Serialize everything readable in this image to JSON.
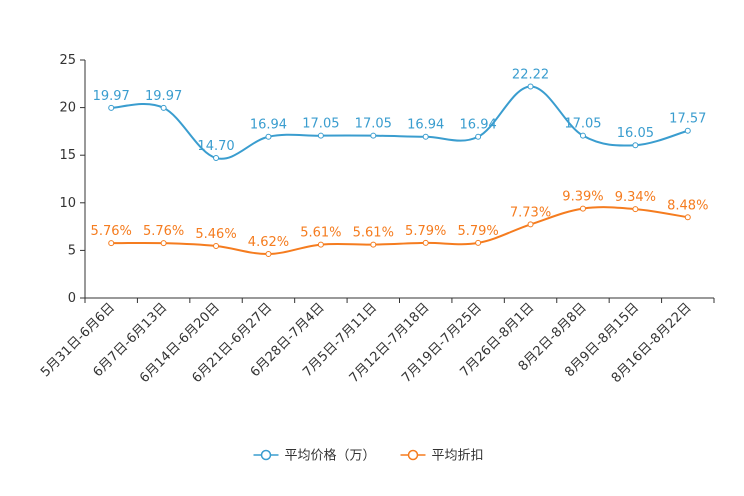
{
  "chart_data": {
    "type": "line",
    "title": "",
    "xlabel": "",
    "ylabel": "",
    "ylim": [
      0,
      25
    ],
    "yticks": [
      0,
      5,
      10,
      15,
      20,
      25
    ],
    "categories": [
      "5月31日-6月6日",
      "6月7日-6月13日",
      "6月14日-6月20日",
      "6月21日-6月27日",
      "6月28日-7月4日",
      "7月5日-7月11日",
      "7月12日-7月18日",
      "7月19日-7月25日",
      "7月26日-8月1日",
      "8月2日-8月8日",
      "8月9日-8月15日",
      "8月16日-8月22日"
    ],
    "series": [
      {
        "name": "平均价格（万）",
        "color": "#3a9dcf",
        "values": [
          19.97,
          19.97,
          14.7,
          16.94,
          17.05,
          17.05,
          16.94,
          16.94,
          22.22,
          17.05,
          16.05,
          17.57
        ],
        "labels": [
          "19.97",
          "19.97",
          "14.70",
          "16.94",
          "17.05",
          "17.05",
          "16.94",
          "16.94",
          "22.22",
          "17.05",
          "16.05",
          "17.57"
        ]
      },
      {
        "name": "平均折扣",
        "color": "#f57c1f",
        "values": [
          5.76,
          5.76,
          5.46,
          4.62,
          5.61,
          5.61,
          5.79,
          5.79,
          7.73,
          9.39,
          9.34,
          8.48
        ],
        "labels": [
          "5.76%",
          "5.76%",
          "5.46%",
          "4.62%",
          "5.61%",
          "5.61%",
          "5.79%",
          "5.79%",
          "7.73%",
          "9.39%",
          "9.34%",
          "8.48%"
        ]
      }
    ],
    "legend": "bottom-center",
    "grid": false
  }
}
